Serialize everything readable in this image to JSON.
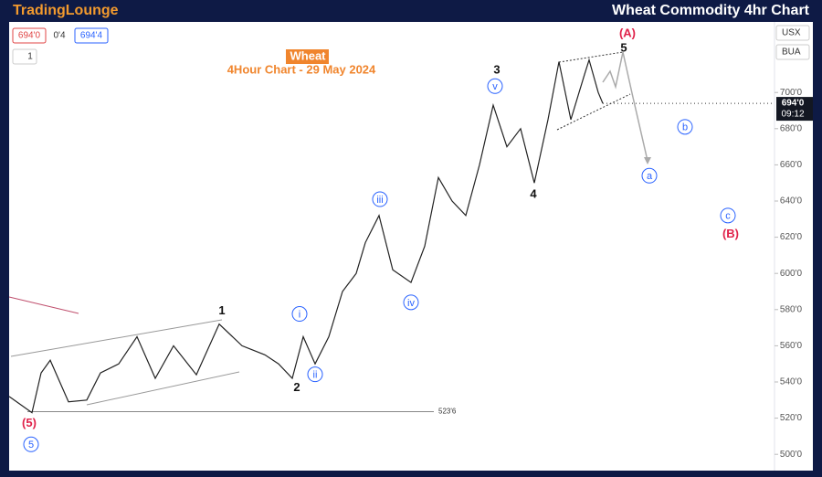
{
  "header": {
    "logo": "TradingLounge",
    "title": "Wheat Commodity 4hr Chart"
  },
  "toolbar": {
    "bid": "694'0",
    "spread": "0'4",
    "ask": "694'4",
    "interval": "1",
    "currency": "USX",
    "unit": "BUA",
    "last_time": "09:12"
  },
  "chart_data": {
    "type": "line",
    "title": "Wheat",
    "subtitle": "4Hour Chart - 29 May 2024",
    "color": "#222222",
    "x": [
      0,
      25,
      35,
      45,
      65,
      85,
      100,
      120,
      140,
      160,
      180,
      205,
      230,
      255,
      280,
      295,
      310,
      322,
      335,
      350,
      365,
      380,
      390,
      405,
      420,
      440,
      455,
      470,
      485,
      500,
      515,
      530,
      545,
      560,
      575,
      590,
      602,
      615,
      630,
      635,
      645,
      650
    ],
    "values": [
      532,
      523,
      545,
      552,
      529,
      530,
      545,
      550,
      565,
      542,
      560,
      544,
      572,
      560,
      555,
      550,
      542,
      565,
      550,
      565,
      590,
      600,
      617,
      632,
      602,
      595,
      615,
      653,
      640,
      632,
      660,
      693,
      670,
      680,
      650,
      685,
      717,
      685,
      710,
      718,
      700,
      694
    ],
    "xlim": [
      0,
      838
    ],
    "ylim": [
      491,
      739
    ],
    "yticks": [
      {
        "value": 500,
        "label": "500'0"
      },
      {
        "value": 520,
        "label": "520'0"
      },
      {
        "value": 540,
        "label": "540'0"
      },
      {
        "value": 560,
        "label": "560'0"
      },
      {
        "value": 580,
        "label": "580'0"
      },
      {
        "value": 600,
        "label": "600'0"
      },
      {
        "value": 620,
        "label": "620'0"
      },
      {
        "value": 640,
        "label": "640'0"
      },
      {
        "value": 660,
        "label": "660'0"
      },
      {
        "value": 680,
        "label": "680'0"
      },
      {
        "value": 700,
        "label": "700'0"
      }
    ],
    "last_price": {
      "value": 694,
      "label": "694'0"
    },
    "levels": [
      {
        "value": 523.6,
        "label": "523'6"
      }
    ],
    "annotations": [
      {
        "text": "(5)",
        "x": 22,
        "y": 517.6,
        "kind": "red"
      },
      {
        "text": "5",
        "x": 24,
        "y": 505.5,
        "kind": "circle"
      },
      {
        "text": "1",
        "x": 233,
        "y": 579.6,
        "kind": "plain"
      },
      {
        "text": "2",
        "x": 315,
        "y": 537.3,
        "kind": "plain"
      },
      {
        "text": "i",
        "x": 318,
        "y": 577.6,
        "kind": "circle"
      },
      {
        "text": "ii",
        "x": 335,
        "y": 544.2,
        "kind": "circle"
      },
      {
        "text": "iii",
        "x": 406,
        "y": 641,
        "kind": "circle"
      },
      {
        "text": "iv",
        "x": 440,
        "y": 584,
        "kind": "circle"
      },
      {
        "text": "3",
        "x": 534,
        "y": 712.6,
        "kind": "plain"
      },
      {
        "text": "v",
        "x": 532,
        "y": 703.5,
        "kind": "circle"
      },
      {
        "text": "4",
        "x": 574,
        "y": 644,
        "kind": "plain"
      },
      {
        "text": "5",
        "x": 673,
        "y": 724.7,
        "kind": "plain"
      },
      {
        "text": "(A)",
        "x": 677,
        "y": 733,
        "kind": "red"
      },
      {
        "text": "a",
        "x": 701,
        "y": 654,
        "kind": "circle"
      },
      {
        "text": "b",
        "x": 740,
        "y": 681,
        "kind": "circle"
      },
      {
        "text": "c",
        "x": 787,
        "y": 632,
        "kind": "circle"
      },
      {
        "text": "(B)",
        "x": 790,
        "y": 622,
        "kind": "red"
      }
    ]
  }
}
